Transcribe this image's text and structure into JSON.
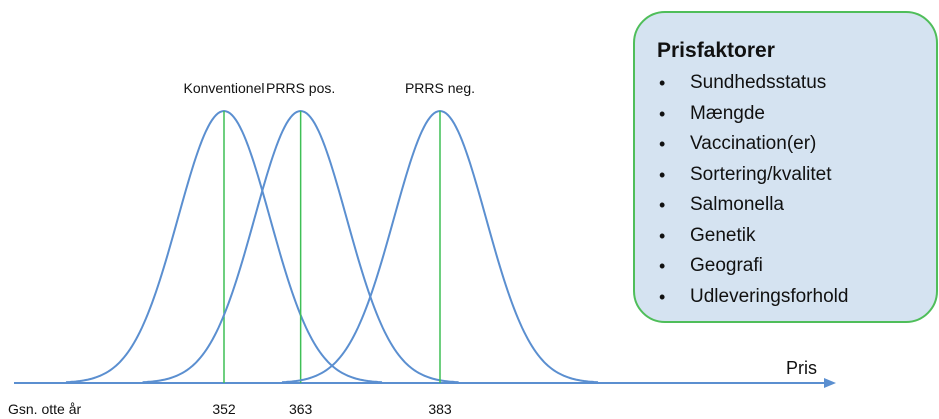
{
  "chart_data": {
    "type": "line",
    "title": "",
    "xlabel": "Pris",
    "ylabel": "",
    "baseline_label": "Gsn. otte år",
    "series": [
      {
        "name": "Konventionel",
        "mean": 352
      },
      {
        "name": "PRRS pos.",
        "mean": 363
      },
      {
        "name": "PRRS neg.",
        "mean": 383
      }
    ],
    "x_tick_labels": [
      "352",
      "363",
      "383"
    ],
    "grid": false,
    "legend": "none",
    "colors": {
      "curve": "#5b8fd0",
      "marker": "#3fbf55",
      "axis": "#5b8fd0"
    }
  },
  "infobox": {
    "title": "Prisfaktorer",
    "items": [
      "Sundhedsstatus",
      "Mængde",
      "Vaccination(er)",
      "Sortering/kvalitet",
      "Salmonella",
      "Genetik",
      "Geografi",
      "Udleveringsforhold"
    ],
    "background": "#d5e3f1",
    "border": "#4fbe5a"
  }
}
